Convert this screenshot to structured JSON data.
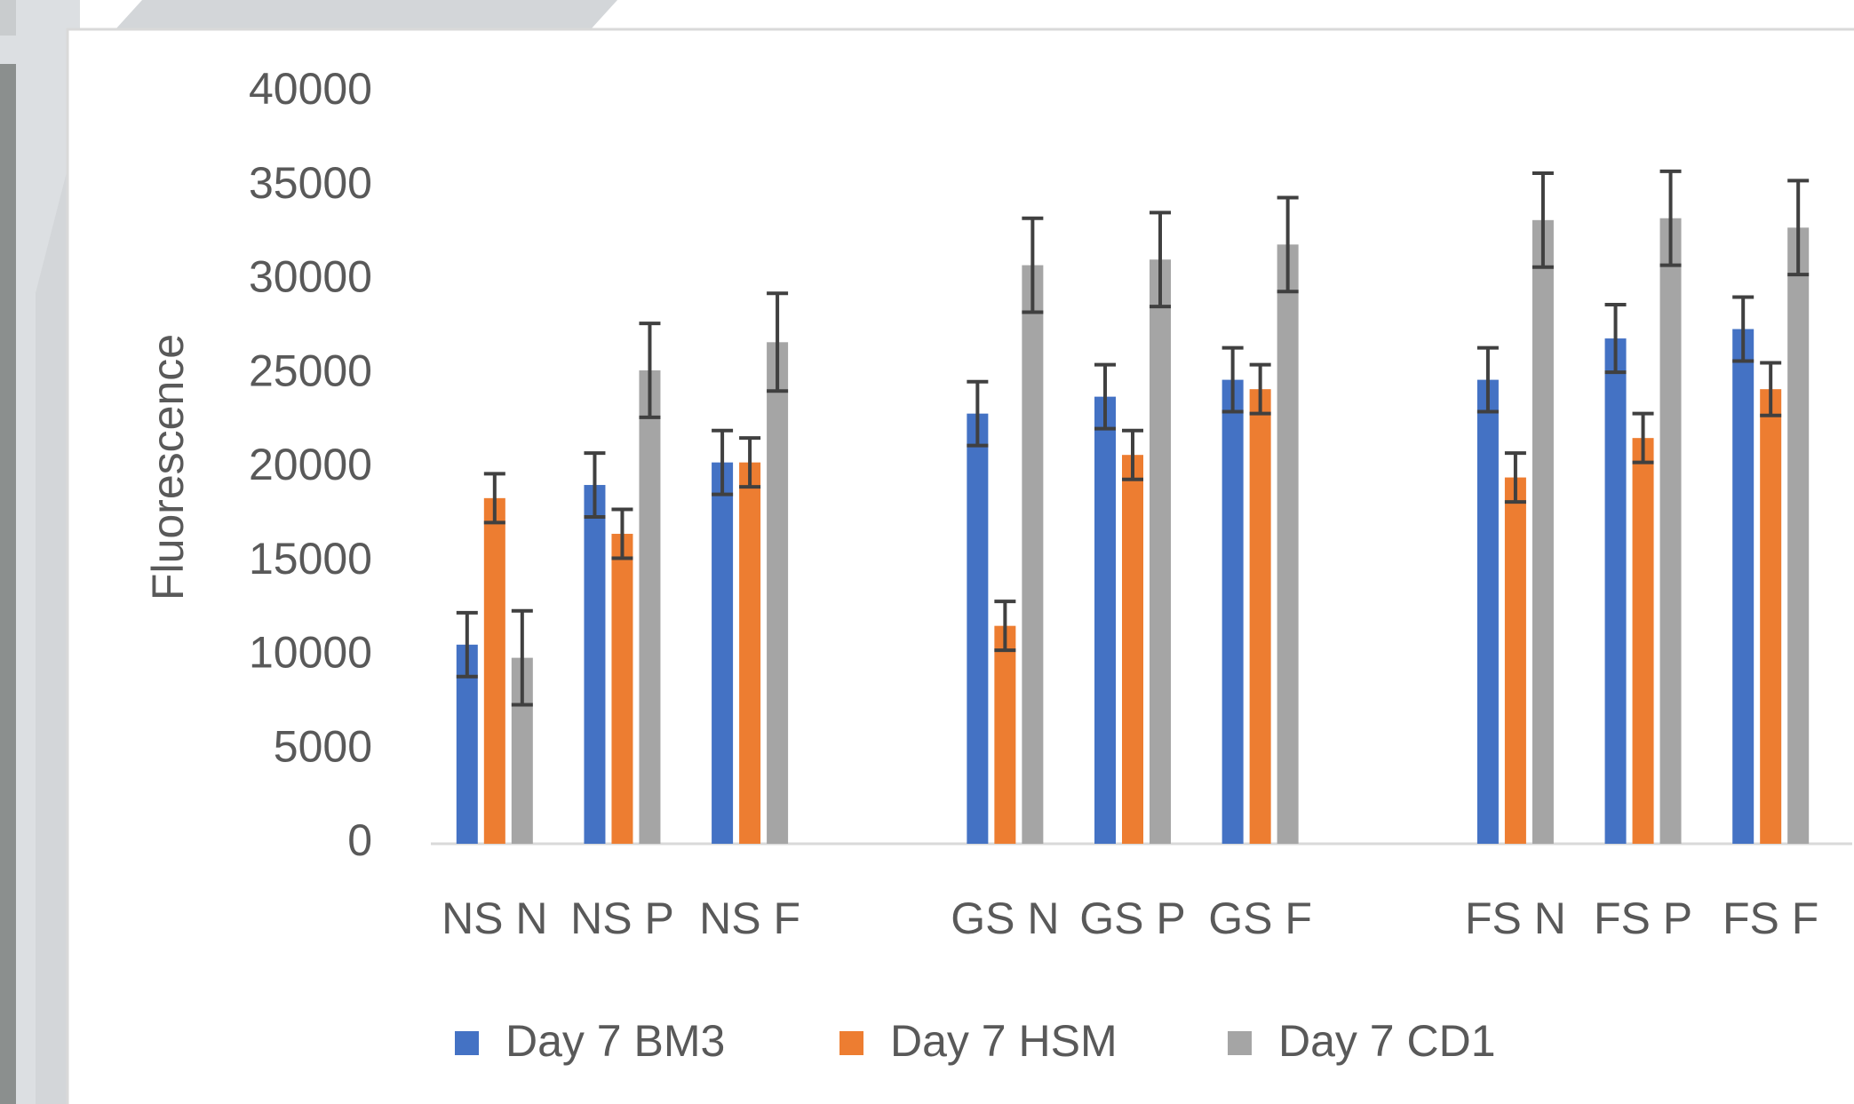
{
  "chart_data": {
    "type": "bar",
    "y_label": "Fluorescence",
    "categories": [
      "NS N",
      "NS P",
      "NS F",
      null,
      "GS N",
      "GS P",
      "GS F",
      null,
      "FS N",
      "FS P",
      "FS F"
    ],
    "series": [
      {
        "name": "Day 7 BM3",
        "color": "#4472c4",
        "values": [
          10600,
          19100,
          20300,
          null,
          22900,
          23800,
          24700,
          null,
          24700,
          26900,
          27400
        ],
        "errors": [
          1700,
          1700,
          1700,
          null,
          1700,
          1700,
          1700,
          null,
          1700,
          1800,
          1700
        ]
      },
      {
        "name": "Day 7 HSM",
        "color": "#ed7d31",
        "values": [
          18400,
          16500,
          20300,
          null,
          11600,
          20700,
          24200,
          null,
          19500,
          21600,
          24200
        ],
        "errors": [
          1300,
          1300,
          1300,
          null,
          1300,
          1300,
          1300,
          null,
          1300,
          1300,
          1400
        ]
      },
      {
        "name": "Day 7 CD1",
        "color": "#a5a5a5",
        "values": [
          9900,
          25200,
          26700,
          null,
          30800,
          31100,
          31900,
          null,
          33200,
          33300,
          32800
        ],
        "errors": [
          2500,
          2500,
          2600,
          null,
          2500,
          2500,
          2500,
          null,
          2500,
          2500,
          2500
        ]
      }
    ],
    "ylim": [
      0,
      40000
    ],
    "yticks": [
      0,
      5000,
      10000,
      15000,
      20000,
      25000,
      30000,
      35000,
      40000
    ],
    "grid": false,
    "legend": "bottom"
  }
}
